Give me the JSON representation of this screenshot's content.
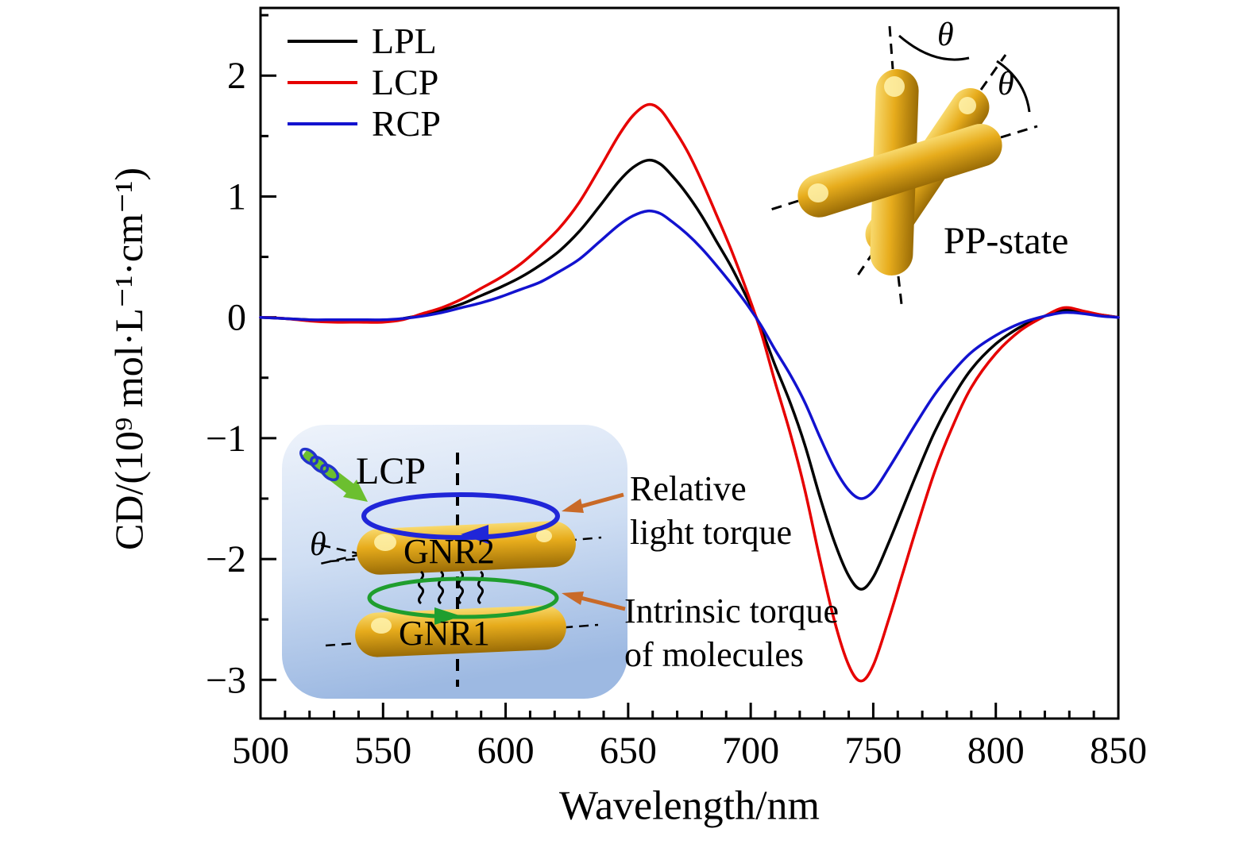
{
  "figure": {
    "background": "#ffffff"
  },
  "chart_data": {
    "type": "line",
    "title": "",
    "xlabel": "Wavelength/nm",
    "ylabel": "CD/(10⁹ mol·L⁻¹·cm⁻¹)",
    "xlim": [
      500,
      850
    ],
    "ylim": [
      -3.32,
      2.56
    ],
    "grid": false,
    "legend_position": "top-left",
    "xticks": {
      "major": [
        500,
        550,
        600,
        650,
        700,
        750,
        800,
        850
      ],
      "labels": [
        "500",
        "550",
        "600",
        "650",
        "700",
        "750",
        "800",
        "850"
      ],
      "minor_step": 10
    },
    "yticks": {
      "major": [
        -3,
        -2,
        -1,
        0,
        1,
        2
      ],
      "labels": [
        "−3",
        "−2",
        "−1",
        "0",
        "1",
        "2"
      ],
      "minor_step": 0.5
    },
    "x": [
      500,
      510,
      520,
      530,
      540,
      550,
      558,
      566,
      574,
      582,
      590,
      598,
      606,
      614,
      622,
      630,
      638,
      646,
      652,
      658,
      663,
      668,
      674,
      680,
      686,
      692,
      698,
      704,
      710,
      716,
      722,
      728,
      734,
      740,
      745,
      750,
      756,
      762,
      768,
      775,
      782,
      790,
      800,
      810,
      820,
      828,
      836,
      843,
      850
    ],
    "series": [
      {
        "name": "LPL",
        "color": "#000000",
        "values": [
          0.0,
          -0.01,
          -0.02,
          -0.03,
          -0.03,
          -0.03,
          -0.01,
          0.02,
          0.06,
          0.11,
          0.18,
          0.25,
          0.33,
          0.43,
          0.55,
          0.71,
          0.91,
          1.12,
          1.24,
          1.3,
          1.27,
          1.17,
          1.02,
          0.84,
          0.63,
          0.42,
          0.18,
          -0.08,
          -0.4,
          -0.7,
          -1.05,
          -1.47,
          -1.85,
          -2.14,
          -2.25,
          -2.15,
          -1.88,
          -1.58,
          -1.28,
          -0.95,
          -0.68,
          -0.43,
          -0.22,
          -0.08,
          0.01,
          0.06,
          0.04,
          0.02,
          0.0
        ]
      },
      {
        "name": "LCP",
        "color": "#e60000",
        "values": [
          0.0,
          -0.01,
          -0.03,
          -0.04,
          -0.04,
          -0.04,
          -0.02,
          0.03,
          0.08,
          0.15,
          0.24,
          0.33,
          0.44,
          0.58,
          0.74,
          0.95,
          1.22,
          1.5,
          1.67,
          1.76,
          1.72,
          1.58,
          1.38,
          1.13,
          0.85,
          0.56,
          0.24,
          -0.11,
          -0.54,
          -0.95,
          -1.42,
          -1.98,
          -2.5,
          -2.88,
          -3.01,
          -2.88,
          -2.52,
          -2.12,
          -1.72,
          -1.28,
          -0.92,
          -0.58,
          -0.3,
          -0.11,
          0.01,
          0.08,
          0.05,
          0.02,
          0.0
        ]
      },
      {
        "name": "RCP",
        "color": "#1212cf",
        "values": [
          0.0,
          -0.01,
          -0.02,
          -0.02,
          -0.02,
          -0.02,
          -0.01,
          0.01,
          0.04,
          0.08,
          0.12,
          0.17,
          0.23,
          0.29,
          0.38,
          0.48,
          0.62,
          0.76,
          0.84,
          0.88,
          0.86,
          0.79,
          0.69,
          0.57,
          0.43,
          0.28,
          0.12,
          -0.06,
          -0.27,
          -0.47,
          -0.7,
          -0.98,
          -1.24,
          -1.43,
          -1.5,
          -1.44,
          -1.26,
          -1.06,
          -0.86,
          -0.64,
          -0.46,
          -0.29,
          -0.15,
          -0.05,
          0.01,
          0.04,
          0.03,
          0.01,
          0.0
        ]
      }
    ]
  },
  "axes": {
    "x_label": "Wavelength/nm",
    "y_label": "CD/(10⁹ mol·L⁻¹·cm⁻¹)"
  },
  "insets": {
    "pp_state": {
      "label": "PP-state",
      "theta_top": "θ",
      "theta_right": "θ",
      "rod_color": "#d89b10"
    },
    "mechanism": {
      "lcp_label": "LCP",
      "gnr2_label": "GNR2",
      "gnr1_label": "GNR1",
      "theta_label": "θ",
      "annotation_relative": "Relative\nlight torque",
      "annotation_intrinsic": "Intrinsic torque\nof molecules",
      "blue_arrow_color": "#2026d8",
      "green_arrow_color": "#1f9e2e",
      "lcp_beam_color": "#6cbf2f",
      "orange_arrow_color": "#c96a28"
    }
  }
}
